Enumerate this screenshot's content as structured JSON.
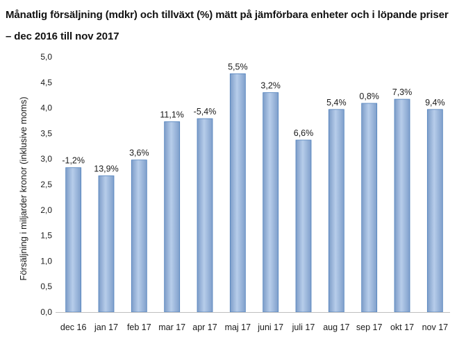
{
  "title": {
    "line1": "Månatlig försäljning (mdkr) och tillväxt (%) mätt på jämförbara enheter och i löpande priser",
    "line2": "– dec 2016 till nov 2017"
  },
  "chart_data": {
    "type": "bar",
    "title": "Månatlig försäljning (mdkr) och tillväxt (%) mätt på jämförbara enheter och i löpande priser – dec 2016 till nov 2017",
    "ylabel": "Försäljning i miljarder kronor (inklusive moms)",
    "xlabel": "",
    "ylim": [
      0,
      5.0
    ],
    "yticks": [
      "0,0",
      "0,5",
      "1,0",
      "1,5",
      "2,0",
      "2,5",
      "3,0",
      "3,5",
      "4,0",
      "4,5",
      "5,0"
    ],
    "grid": false,
    "legend": "none",
    "bar_color": "#95b3d7",
    "bar_edge_color": "#4f81bd",
    "categories": [
      "dec 16",
      "jan 17",
      "feb 17",
      "mar 17",
      "apr 17",
      "maj 17",
      "juni 17",
      "juli 17",
      "aug 17",
      "sep 17",
      "okt 17",
      "nov 17"
    ],
    "values": [
      2.83,
      2.67,
      2.98,
      3.73,
      3.79,
      4.67,
      4.3,
      3.37,
      3.97,
      4.09,
      4.17,
      3.97
    ],
    "data_labels": [
      "-1,2%",
      "13,9%",
      "3,6%",
      "11,1%",
      "-5,4%",
      "5,5%",
      "3,2%",
      "6,6%",
      "5,4%",
      "0,8%",
      "7,3%",
      "9,4%"
    ]
  }
}
